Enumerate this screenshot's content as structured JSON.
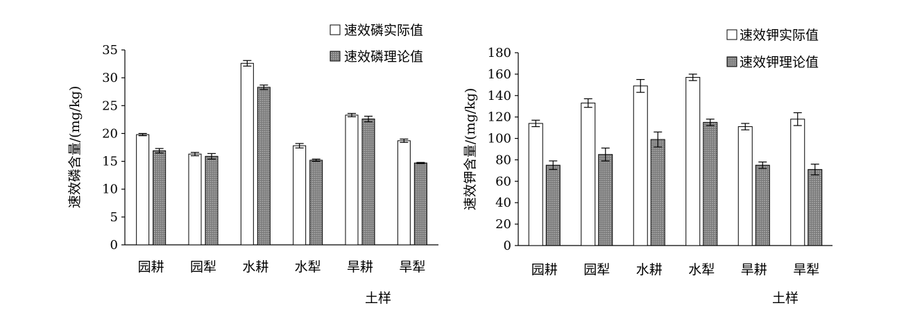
{
  "chart_data": [
    {
      "type": "bar",
      "categories": [
        "园耕",
        "园犁",
        "水耕",
        "水犁",
        "旱耕",
        "旱犁"
      ],
      "series": [
        {
          "name": "速效磷实际值",
          "values": [
            19.8,
            16.3,
            32.6,
            17.8,
            23.3,
            18.7
          ],
          "errors": [
            0.2,
            0.3,
            0.5,
            0.4,
            0.3,
            0.3
          ],
          "fill": "#ffffff"
        },
        {
          "name": "速效磷理论值",
          "values": [
            16.9,
            15.9,
            28.3,
            15.2,
            22.6,
            14.7
          ],
          "errors": [
            0.4,
            0.5,
            0.4,
            0.2,
            0.5,
            0.1
          ],
          "fill": "#8c8c8c"
        }
      ],
      "ylabel": "速效磷含量/(mg/kg)",
      "xlabel": "土样",
      "ylim": [
        0,
        35
      ],
      "yticks": [
        0,
        5,
        10,
        15,
        20,
        25,
        30,
        35
      ],
      "grid": false,
      "legend": "top-right"
    },
    {
      "type": "bar",
      "categories": [
        "园耕",
        "园犁",
        "水耕",
        "水犁",
        "旱耕",
        "旱犁"
      ],
      "series": [
        {
          "name": "速效钾实际值",
          "values": [
            114,
            133,
            149,
            157,
            111,
            118
          ],
          "errors": [
            3,
            4,
            6,
            3,
            3,
            6
          ],
          "fill": "#ffffff"
        },
        {
          "name": "速效钾理论值",
          "values": [
            75,
            85,
            99,
            115,
            75,
            71
          ],
          "errors": [
            4,
            6,
            7,
            3,
            3,
            5
          ],
          "fill": "#8c8c8c"
        }
      ],
      "ylabel": "速效钾含量/(mg/kg)",
      "xlabel": "土样",
      "ylim": [
        0,
        180
      ],
      "yticks": [
        0,
        20,
        40,
        60,
        80,
        100,
        120,
        140,
        160,
        180
      ],
      "grid": false,
      "legend": "top-right"
    }
  ]
}
